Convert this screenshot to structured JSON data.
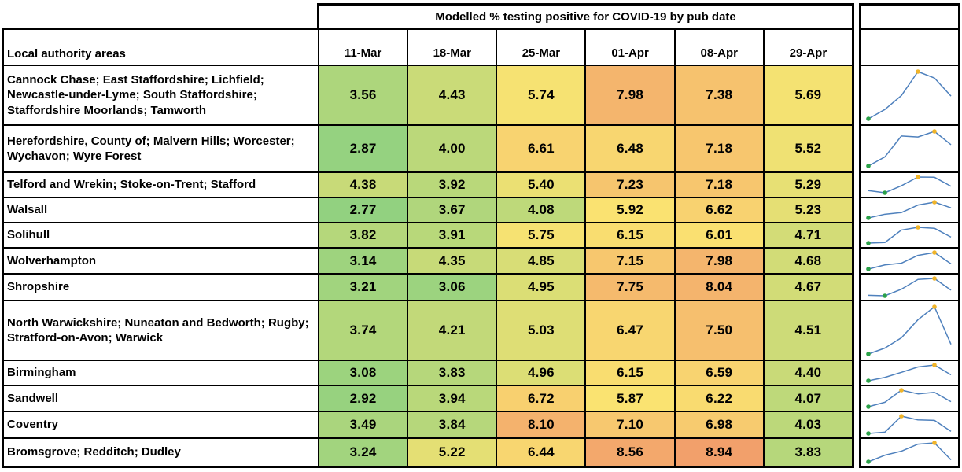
{
  "title": "Modelled % testing positive for COVID-19 by pub date",
  "row_header_label": "Local authority areas",
  "chart_data": {
    "type": "heatmap",
    "title": "Modelled % testing positive for COVID-19 by pub date",
    "columns": [
      "11-Mar",
      "18-Mar",
      "25-Mar",
      "01-Apr",
      "08-Apr",
      "29-Apr"
    ],
    "row_header_label": "Local authority areas",
    "series": [
      {
        "name": "Cannock Chase; East Staffordshire; Lichfield; Newcastle-under-Lyme; South Staffordshire; Staffordshire Moorlands; Tamworth",
        "values": [
          3.56,
          4.43,
          5.74,
          7.98,
          7.38,
          5.69
        ]
      },
      {
        "name": "Herefordshire, County of; Malvern Hills; Worcester; Wychavon; Wyre Forest",
        "values": [
          2.87,
          4.0,
          6.61,
          6.48,
          7.18,
          5.52
        ]
      },
      {
        "name": "Telford and Wrekin; Stoke-on-Trent; Stafford",
        "values": [
          4.38,
          3.92,
          5.4,
          7.23,
          7.18,
          5.29
        ]
      },
      {
        "name": "Walsall",
        "values": [
          2.77,
          3.67,
          4.08,
          5.92,
          6.62,
          5.23
        ]
      },
      {
        "name": "Solihull",
        "values": [
          3.82,
          3.91,
          5.75,
          6.15,
          6.01,
          4.71
        ]
      },
      {
        "name": "Wolverhampton",
        "values": [
          3.14,
          4.35,
          4.85,
          7.15,
          7.98,
          4.68
        ]
      },
      {
        "name": "Shropshire",
        "values": [
          3.21,
          3.06,
          4.95,
          7.75,
          8.04,
          4.67
        ]
      },
      {
        "name": "North Warwickshire; Nuneaton and Bedworth; Rugby; Stratford-on-Avon; Warwick",
        "values": [
          3.74,
          4.21,
          5.03,
          6.47,
          7.5,
          4.51
        ]
      },
      {
        "name": "Birmingham",
        "values": [
          3.08,
          3.83,
          4.96,
          6.15,
          6.59,
          4.4
        ]
      },
      {
        "name": "Sandwell",
        "values": [
          2.92,
          3.94,
          6.72,
          5.87,
          6.22,
          4.07
        ]
      },
      {
        "name": "Coventry",
        "values": [
          3.49,
          3.84,
          8.1,
          7.1,
          6.98,
          4.03
        ]
      },
      {
        "name": "Bromsgrove; Redditch; Dudley",
        "values": [
          3.24,
          5.22,
          6.44,
          8.56,
          8.94,
          3.83
        ]
      }
    ],
    "color_scale": {
      "min": 2.77,
      "mid": 5.86,
      "max": 8.94,
      "min_color": "#92D180",
      "mid_color": "#FAE371",
      "max_color": "#F2A06B"
    },
    "sparkline": {
      "line_color": "#4f81bd",
      "min_dot_color": "#2aa148",
      "max_dot_color": "#f0b429",
      "description": "per-row line of the six values; green dot = minimum, orange dot = maximum"
    },
    "value_format": "2 decimal places",
    "legend_position": "none",
    "grid": true
  }
}
